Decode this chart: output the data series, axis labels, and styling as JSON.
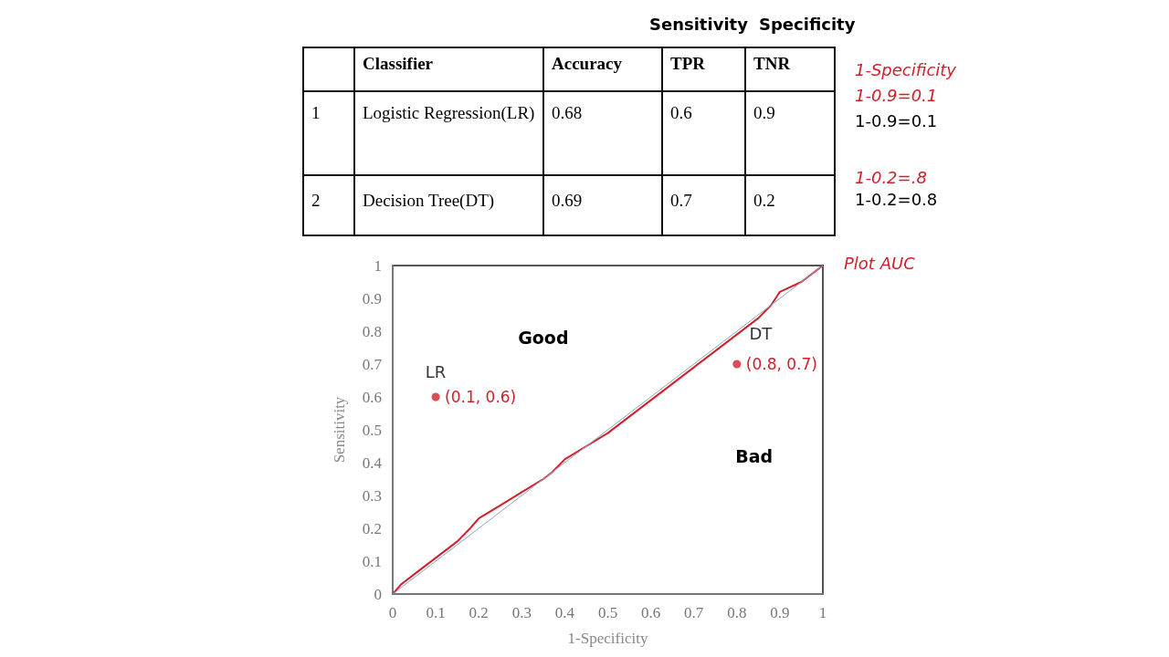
{
  "chart_data": [
    {
      "type": "other",
      "categories": [
        null,
        "Classifier",
        "Accuracy",
        "TPR",
        "TNR"
      ],
      "cell_labels": [
        [
          "1",
          "Logistic Regression(LR)",
          "0.68",
          "0.6",
          "0.9"
        ],
        [
          "2",
          "Decision Tree(DT)",
          "0.69",
          "0.7",
          "0.2"
        ]
      ],
      "annotations": [
        "Sensitivity",
        "Specificity",
        "1-Specificity",
        "1-0.9=0.1",
        "1-0.9=0.1",
        "1-0.2=.8",
        "1-0.2=0.8"
      ]
    },
    {
      "type": "line",
      "xlabel": "1-Specificity",
      "ylabel": "Sensitivity",
      "xlim": [
        0,
        1
      ],
      "ylim": [
        0,
        1
      ],
      "xticks": [
        0,
        0.1,
        0.2,
        0.3,
        0.4,
        0.5,
        0.6,
        0.7,
        0.8,
        0.9,
        1
      ],
      "yticks": [
        0,
        0.1,
        0.2,
        0.3,
        0.4,
        0.5,
        0.6,
        0.7,
        0.8,
        0.9,
        1
      ],
      "grid": false,
      "legend": false,
      "series": [
        {
          "type": "line",
          "marker": "none",
          "color": "#d0202a",
          "x": [
            0,
            0.02,
            0.05,
            0.1,
            0.15,
            0.18,
            0.2,
            0.25,
            0.3,
            0.35,
            0.37,
            0.4,
            0.45,
            0.5,
            0.55,
            0.6,
            0.65,
            0.7,
            0.75,
            0.8,
            0.85,
            0.88,
            0.9,
            0.95,
            0.98,
            1
          ],
          "values": [
            0,
            0.03,
            0.06,
            0.11,
            0.16,
            0.2,
            0.23,
            0.27,
            0.31,
            0.35,
            0.37,
            0.41,
            0.45,
            0.49,
            0.54,
            0.59,
            0.64,
            0.69,
            0.74,
            0.79,
            0.84,
            0.88,
            0.92,
            0.95,
            0.98,
            1
          ]
        },
        {
          "type": "line",
          "marker": "none",
          "color": "#8aa8b8",
          "x": [
            0,
            1
          ],
          "values": [
            0,
            1
          ]
        },
        {
          "type": "scatter",
          "marker": "circle",
          "name": "LR",
          "color": "#d0202a",
          "x": [
            0.1
          ],
          "values": [
            0.6
          ]
        },
        {
          "type": "scatter",
          "marker": "circle",
          "name": "DT",
          "color": "#d0202a",
          "x": [
            0.8
          ],
          "values": [
            0.7
          ]
        }
      ],
      "annotations": [
        {
          "text": "(0.1, 0.6)",
          "x": 0.1,
          "y": 0.6
        },
        {
          "text": "(0.8, 0.7)",
          "x": 0.8,
          "y": 0.7
        },
        "Good",
        "Bad",
        "Plot AUC"
      ]
    }
  ]
}
